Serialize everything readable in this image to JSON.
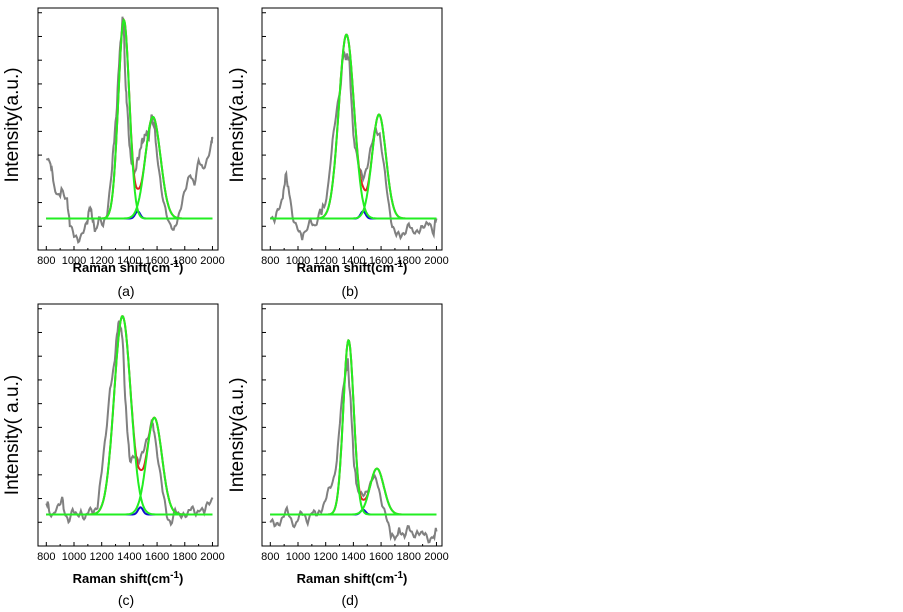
{
  "chart_data": [
    {
      "type": "line",
      "caption": "(a)",
      "xlabel": "Raman shift(cm-1)",
      "xlabel_main": "Raman shift(cm",
      "xlabel_sup": "-1",
      "xlabel_close": ")",
      "ylabel": "Intensity(a.u.)",
      "xlim": [
        740,
        2040
      ],
      "ylim": [
        0,
        1
      ],
      "x_ticks": [
        800,
        1000,
        1200,
        1400,
        1600,
        1800,
        2000
      ],
      "y_tick_count": 10,
      "baseline": 0.13,
      "noise": [
        [
          800,
          0.39
        ],
        [
          830,
          0.37
        ],
        [
          850,
          0.29
        ],
        [
          880,
          0.22
        ],
        [
          920,
          0.25
        ],
        [
          950,
          0.2
        ],
        [
          970,
          0.11
        ],
        [
          1000,
          0.05
        ],
        [
          1030,
          0.04
        ],
        [
          1060,
          0.08
        ],
        [
          1090,
          0.1
        ],
        [
          1110,
          0.17
        ],
        [
          1130,
          0.15
        ],
        [
          1150,
          0.08
        ],
        [
          1180,
          0.13
        ],
        [
          1210,
          0.09
        ],
        [
          1240,
          0.16
        ],
        [
          1270,
          0.32
        ],
        [
          1290,
          0.45
        ],
        [
          1310,
          0.6
        ],
        [
          1330,
          0.82
        ],
        [
          1350,
          0.95
        ],
        [
          1360,
          0.91
        ],
        [
          1370,
          0.72
        ],
        [
          1380,
          0.62
        ],
        [
          1400,
          0.44
        ],
        [
          1420,
          0.34
        ],
        [
          1440,
          0.32
        ],
        [
          1460,
          0.37
        ],
        [
          1480,
          0.42
        ],
        [
          1500,
          0.46
        ],
        [
          1520,
          0.48
        ],
        [
          1540,
          0.47
        ],
        [
          1560,
          0.55
        ],
        [
          1580,
          0.52
        ],
        [
          1600,
          0.38
        ],
        [
          1630,
          0.25
        ],
        [
          1660,
          0.18
        ],
        [
          1690,
          0.1
        ],
        [
          1720,
          0.07
        ],
        [
          1750,
          0.14
        ],
        [
          1780,
          0.2
        ],
        [
          1810,
          0.25
        ],
        [
          1840,
          0.32
        ],
        [
          1870,
          0.28
        ],
        [
          1900,
          0.36
        ],
        [
          1930,
          0.33
        ],
        [
          1960,
          0.38
        ],
        [
          1990,
          0.43
        ],
        [
          2000,
          0.46
        ]
      ],
      "peaks": [
        {
          "center": 1360,
          "height": 0.82,
          "sigma": 40
        },
        {
          "center": 1570,
          "height": 0.42,
          "sigma": 55
        },
        {
          "center": 1460,
          "height": 0.03,
          "sigma": 18
        }
      ]
    },
    {
      "type": "line",
      "caption": "(b)",
      "xlabel": "Raman shift(cm-1)",
      "xlabel_main": "Raman shift(cm",
      "xlabel_sup": "-1",
      "xlabel_close": ")",
      "ylabel": "Intensity(a.u.)",
      "xlim": [
        740,
        2040
      ],
      "ylim": [
        0,
        1
      ],
      "x_ticks": [
        800,
        1000,
        1200,
        1400,
        1600,
        1800,
        2000
      ],
      "y_tick_count": 10,
      "baseline": 0.13,
      "noise": [
        [
          800,
          0.15
        ],
        [
          830,
          0.12
        ],
        [
          860,
          0.16
        ],
        [
          890,
          0.22
        ],
        [
          910,
          0.31
        ],
        [
          930,
          0.26
        ],
        [
          960,
          0.15
        ],
        [
          990,
          0.1
        ],
        [
          1020,
          0.05
        ],
        [
          1060,
          0.08
        ],
        [
          1090,
          0.11
        ],
        [
          1120,
          0.1
        ],
        [
          1150,
          0.15
        ],
        [
          1190,
          0.18
        ],
        [
          1220,
          0.28
        ],
        [
          1250,
          0.44
        ],
        [
          1280,
          0.58
        ],
        [
          1310,
          0.7
        ],
        [
          1330,
          0.82
        ],
        [
          1350,
          0.79
        ],
        [
          1370,
          0.8
        ],
        [
          1390,
          0.56
        ],
        [
          1410,
          0.42
        ],
        [
          1440,
          0.34
        ],
        [
          1470,
          0.31
        ],
        [
          1500,
          0.34
        ],
        [
          1530,
          0.42
        ],
        [
          1560,
          0.51
        ],
        [
          1590,
          0.48
        ],
        [
          1620,
          0.34
        ],
        [
          1650,
          0.21
        ],
        [
          1680,
          0.11
        ],
        [
          1710,
          0.06
        ],
        [
          1740,
          0.05
        ],
        [
          1770,
          0.08
        ],
        [
          1800,
          0.11
        ],
        [
          1830,
          0.06
        ],
        [
          1860,
          0.08
        ],
        [
          1890,
          0.1
        ],
        [
          1920,
          0.09
        ],
        [
          1950,
          0.11
        ],
        [
          1980,
          0.08
        ],
        [
          2000,
          0.13
        ]
      ],
      "peaks": [
        {
          "center": 1350,
          "height": 0.76,
          "sigma": 55
        },
        {
          "center": 1585,
          "height": 0.43,
          "sigma": 50
        },
        {
          "center": 1470,
          "height": 0.03,
          "sigma": 18
        }
      ]
    },
    {
      "type": "line",
      "caption": "(c)",
      "xlabel": "Raman shift(cm-1)",
      "xlabel_main": "Raman shift(cm",
      "xlabel_sup": "-1",
      "xlabel_close": ")",
      "ylabel": "Intensity( a.u.)",
      "xlim": [
        740,
        2040
      ],
      "ylim": [
        0,
        1
      ],
      "x_ticks": [
        800,
        1000,
        1200,
        1400,
        1600,
        1800,
        2000
      ],
      "y_tick_count": 10,
      "baseline": 0.13,
      "noise": [
        [
          800,
          0.19
        ],
        [
          820,
          0.15
        ],
        [
          850,
          0.12
        ],
        [
          880,
          0.15
        ],
        [
          910,
          0.2
        ],
        [
          930,
          0.15
        ],
        [
          960,
          0.11
        ],
        [
          990,
          0.14
        ],
        [
          1020,
          0.12
        ],
        [
          1050,
          0.15
        ],
        [
          1080,
          0.11
        ],
        [
          1110,
          0.14
        ],
        [
          1140,
          0.15
        ],
        [
          1170,
          0.17
        ],
        [
          1200,
          0.3
        ],
        [
          1230,
          0.46
        ],
        [
          1260,
          0.66
        ],
        [
          1290,
          0.74
        ],
        [
          1310,
          0.88
        ],
        [
          1330,
          0.93
        ],
        [
          1350,
          0.86
        ],
        [
          1370,
          0.62
        ],
        [
          1390,
          0.43
        ],
        [
          1410,
          0.34
        ],
        [
          1440,
          0.38
        ],
        [
          1470,
          0.36
        ],
        [
          1500,
          0.38
        ],
        [
          1530,
          0.44
        ],
        [
          1560,
          0.52
        ],
        [
          1580,
          0.48
        ],
        [
          1610,
          0.35
        ],
        [
          1640,
          0.22
        ],
        [
          1670,
          0.13
        ],
        [
          1700,
          0.1
        ],
        [
          1730,
          0.14
        ],
        [
          1760,
          0.12
        ],
        [
          1790,
          0.14
        ],
        [
          1820,
          0.13
        ],
        [
          1850,
          0.15
        ],
        [
          1880,
          0.14
        ],
        [
          1910,
          0.16
        ],
        [
          1940,
          0.13
        ],
        [
          1970,
          0.18
        ],
        [
          2000,
          0.2
        ]
      ],
      "peaks": [
        {
          "center": 1350,
          "height": 0.82,
          "sigma": 60
        },
        {
          "center": 1580,
          "height": 0.4,
          "sigma": 55
        },
        {
          "center": 1480,
          "height": 0.03,
          "sigma": 18
        }
      ]
    },
    {
      "type": "line",
      "caption": "(d)",
      "xlabel": "Raman shift(cm-1)",
      "xlabel_main": "Raman shift(cm",
      "xlabel_sup": "-1",
      "xlabel_close": ")",
      "ylabel": "Intensity(a.u.)",
      "xlim": [
        740,
        2040
      ],
      "ylim": [
        0,
        1
      ],
      "x_ticks": [
        800,
        1000,
        1200,
        1400,
        1600,
        1800,
        2000
      ],
      "y_tick_count": 10,
      "baseline": 0.13,
      "noise": [
        [
          800,
          0.1
        ],
        [
          830,
          0.08
        ],
        [
          860,
          0.1
        ],
        [
          890,
          0.12
        ],
        [
          920,
          0.14
        ],
        [
          950,
          0.11
        ],
        [
          980,
          0.09
        ],
        [
          1010,
          0.12
        ],
        [
          1040,
          0.13
        ],
        [
          1070,
          0.11
        ],
        [
          1100,
          0.14
        ],
        [
          1130,
          0.12
        ],
        [
          1160,
          0.15
        ],
        [
          1190,
          0.18
        ],
        [
          1220,
          0.22
        ],
        [
          1250,
          0.26
        ],
        [
          1280,
          0.36
        ],
        [
          1310,
          0.56
        ],
        [
          1340,
          0.7
        ],
        [
          1360,
          0.76
        ],
        [
          1380,
          0.6
        ],
        [
          1400,
          0.38
        ],
        [
          1420,
          0.26
        ],
        [
          1450,
          0.2
        ],
        [
          1480,
          0.21
        ],
        [
          1510,
          0.25
        ],
        [
          1540,
          0.28
        ],
        [
          1570,
          0.26
        ],
        [
          1600,
          0.2
        ],
        [
          1630,
          0.14
        ],
        [
          1660,
          0.06
        ],
        [
          1700,
          0.03
        ],
        [
          1740,
          0.07
        ],
        [
          1770,
          0.04
        ],
        [
          1800,
          0.07
        ],
        [
          1830,
          0.05
        ],
        [
          1860,
          0.06
        ],
        [
          1890,
          0.04
        ],
        [
          1920,
          0.05
        ],
        [
          1950,
          0.03
        ],
        [
          1980,
          0.04
        ],
        [
          2000,
          0.06
        ]
      ],
      "peaks": [
        {
          "center": 1365,
          "height": 0.72,
          "sigma": 38
        },
        {
          "center": 1570,
          "height": 0.19,
          "sigma": 50
        },
        {
          "center": 1470,
          "height": 0.02,
          "sigma": 18
        }
      ]
    }
  ],
  "colors": {
    "data_line": "#808080",
    "fit_peak": "#22ee22",
    "fit_sum": "#e02020",
    "fit_minor": "#1010cc",
    "axis": "#000000"
  }
}
